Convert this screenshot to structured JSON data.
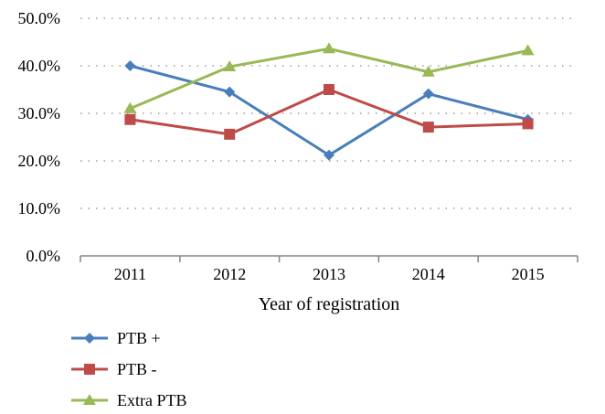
{
  "chart_data": {
    "type": "line",
    "xlabel": "Year of registration",
    "ylabel": "",
    "categories": [
      "2011",
      "2012",
      "2013",
      "2014",
      "2015"
    ],
    "ylim": [
      0,
      50
    ],
    "yticks": [
      "0.0%",
      "10.0%",
      "20.0%",
      "30.0%",
      "40.0%",
      "50.0%"
    ],
    "grid": "horizontal-dotted",
    "legend_position": "bottom-left",
    "series": [
      {
        "name": "PTB +",
        "values": [
          40.0,
          34.5,
          21.2,
          34.1,
          28.7
        ],
        "color": "#4a7ebb",
        "marker": "diamond"
      },
      {
        "name": "PTB -",
        "values": [
          28.7,
          25.6,
          35.0,
          27.1,
          27.8
        ],
        "color": "#be4b48",
        "marker": "square"
      },
      {
        "name": "Extra PTB",
        "values": [
          31.0,
          39.8,
          43.6,
          38.7,
          43.2
        ],
        "color": "#98b954",
        "marker": "triangle"
      }
    ]
  }
}
